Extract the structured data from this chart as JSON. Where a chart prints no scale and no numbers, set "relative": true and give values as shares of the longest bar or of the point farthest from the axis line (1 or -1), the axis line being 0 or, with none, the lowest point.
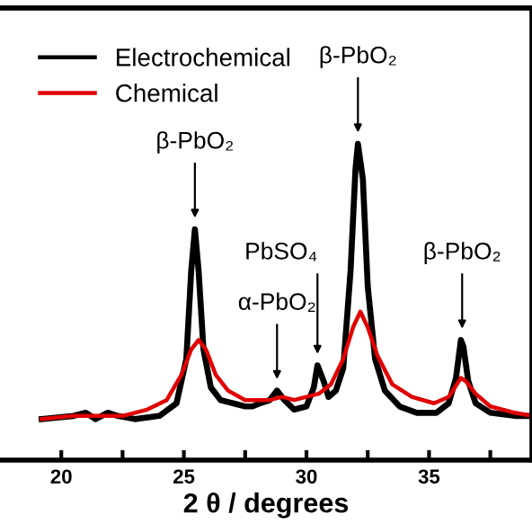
{
  "chart_data": {
    "type": "line",
    "relative": true,
    "xlabel": "2 θ / degrees",
    "xlim": [
      17.5,
      39.2
    ],
    "xticks": [
      20,
      {
        "value": 22.5,
        "label": null
      },
      25,
      {
        "value": 27.5,
        "label": null
      },
      30,
      {
        "value": 32.5,
        "label": null
      },
      35,
      {
        "value": 37.5,
        "label": null
      }
    ],
    "tick_labels": "x",
    "legend": "top left",
    "grid": false,
    "series": [
      {
        "name": "Electrochemical",
        "color": "#000000",
        "x": [
          19.2,
          20.5,
          21.0,
          21.4,
          21.9,
          22.3,
          23.0,
          24.0,
          24.7,
          25.1,
          25.3,
          25.45,
          25.6,
          25.8,
          26.1,
          26.5,
          27.0,
          27.5,
          27.8,
          28.1,
          28.5,
          28.8,
          29.1,
          29.5,
          30.0,
          30.3,
          30.45,
          30.7,
          30.9,
          31.2,
          31.5,
          31.8,
          32.0,
          32.1,
          32.3,
          32.5,
          32.8,
          33.2,
          33.8,
          34.5,
          35.3,
          35.8,
          36.1,
          36.3,
          36.4,
          36.6,
          36.9,
          37.5,
          38.5,
          39.2
        ],
        "values": [
          0.13,
          0.14,
          0.15,
          0.13,
          0.15,
          0.14,
          0.13,
          0.14,
          0.18,
          0.32,
          0.6,
          0.73,
          0.6,
          0.35,
          0.23,
          0.19,
          0.18,
          0.17,
          0.17,
          0.18,
          0.19,
          0.22,
          0.19,
          0.16,
          0.17,
          0.23,
          0.3,
          0.25,
          0.2,
          0.22,
          0.29,
          0.6,
          0.92,
          1.0,
          0.89,
          0.55,
          0.32,
          0.22,
          0.17,
          0.15,
          0.15,
          0.18,
          0.26,
          0.38,
          0.36,
          0.25,
          0.18,
          0.15,
          0.14,
          0.14
        ]
      },
      {
        "name": "Chemical",
        "color": "#e00000",
        "x": [
          19.2,
          20.5,
          21.5,
          22.5,
          23.5,
          24.3,
          24.9,
          25.3,
          25.6,
          25.9,
          26.3,
          26.8,
          27.5,
          28.5,
          29.0,
          29.5,
          30.0,
          30.5,
          31.0,
          31.5,
          31.9,
          32.2,
          32.5,
          32.9,
          33.5,
          34.3,
          35.2,
          35.8,
          36.3,
          36.5,
          36.9,
          37.5,
          38.5,
          39.2
        ],
        "values": [
          0.13,
          0.14,
          0.14,
          0.14,
          0.16,
          0.19,
          0.27,
          0.35,
          0.38,
          0.35,
          0.27,
          0.22,
          0.19,
          0.19,
          0.2,
          0.19,
          0.2,
          0.21,
          0.24,
          0.32,
          0.42,
          0.47,
          0.42,
          0.33,
          0.24,
          0.2,
          0.18,
          0.2,
          0.26,
          0.25,
          0.21,
          0.17,
          0.15,
          0.14
        ]
      }
    ],
    "annotations": [
      {
        "text": "β-PbO₂",
        "x": 25.45,
        "y": 0.75
      },
      {
        "text": "α-PbO₂",
        "x": 28.8,
        "y": 0.24
      },
      {
        "text": "PbSO₄",
        "x": 30.45,
        "y": 0.32
      },
      {
        "text": "β-PbO₂",
        "x": 32.1,
        "y": 1.02
      },
      {
        "text": "β-PbO₂",
        "x": 36.35,
        "y": 0.4
      }
    ]
  }
}
